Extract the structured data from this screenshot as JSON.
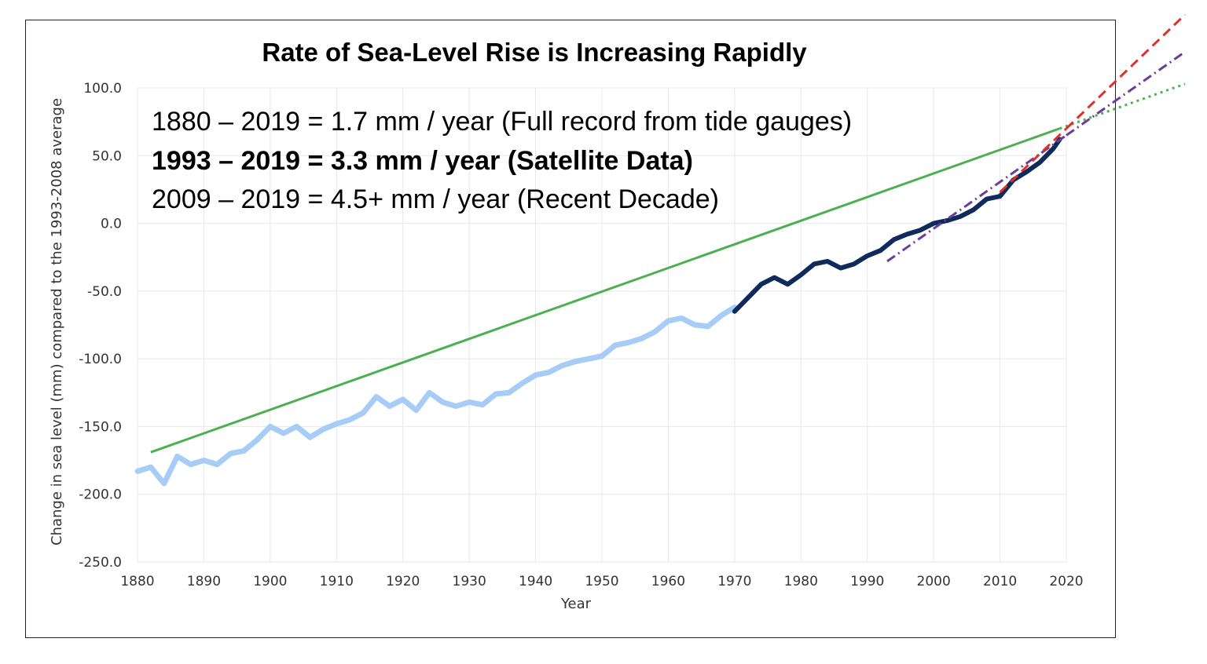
{
  "chart_data": {
    "type": "line",
    "title": "Rate of Sea-Level Rise is Increasing Rapidly",
    "xlabel": "Year",
    "ylabel": "Change in sea level (mm) compared to the 1993-2008 average",
    "xlim": [
      1880,
      2020
    ],
    "ylim": [
      -250,
      100
    ],
    "x_ticks": [
      "1880",
      "1890",
      "1900",
      "1910",
      "1920",
      "1930",
      "1940",
      "1950",
      "1960",
      "1970",
      "1980",
      "1990",
      "2000",
      "2010",
      "2020"
    ],
    "y_ticks": [
      "100.0",
      "50.0",
      "0.0",
      "-50.0",
      "-100.0",
      "-150.0",
      "-200.0",
      "-250.0"
    ],
    "grid": true,
    "annotations": [
      {
        "text": "1880 – 2019 = 1.7 mm / year (Full record from tide gauges)",
        "color": "#4caf50",
        "bold": false
      },
      {
        "text": "1993 – 2019 = 3.3 mm / year (Satellite Data)",
        "color": "#6a3d9a",
        "bold": true
      },
      {
        "text": "2009 – 2019 = 4.5+ mm / year (Recent Decade)",
        "color": "#e0302a",
        "bold": false
      }
    ],
    "series": [
      {
        "name": "",
        "color": "#a7cdf7",
        "x": [
          1880,
          1882,
          1884,
          1886,
          1888,
          1890,
          1892,
          1894,
          1896,
          1898,
          1900,
          1902,
          1904,
          1906,
          1908,
          1910,
          1912,
          1914,
          1916,
          1918,
          1920,
          1922,
          1924,
          1926,
          1928,
          1930,
          1932,
          1934,
          1936,
          1938,
          1940,
          1942,
          1944,
          1946,
          1948,
          1950,
          1952,
          1954,
          1956,
          1958,
          1960,
          1962,
          1964,
          1966,
          1968,
          1970
        ],
        "y": [
          -183,
          -180,
          -192,
          -172,
          -178,
          -175,
          -178,
          -170,
          -168,
          -160,
          -150,
          -155,
          -150,
          -158,
          -152,
          -148,
          -145,
          -140,
          -128,
          -135,
          -130,
          -138,
          -125,
          -132,
          -135,
          -132,
          -134,
          -126,
          -125,
          -118,
          -112,
          -110,
          -105,
          -102,
          -100,
          -98,
          -90,
          -88,
          -85,
          -80,
          -72,
          -70,
          -75,
          -76,
          -68,
          -62
        ]
      },
      {
        "name": "",
        "color": "#0e2b5c",
        "x": [
          1970,
          1972,
          1974,
          1976,
          1978,
          1980,
          1982,
          1984,
          1986,
          1988,
          1990,
          1992,
          1994,
          1996,
          1998,
          2000,
          2002,
          2004,
          2006,
          2008,
          2010,
          2012,
          2014,
          2016,
          2018,
          2019
        ],
        "y": [
          -65,
          -55,
          -45,
          -40,
          -45,
          -38,
          -30,
          -28,
          -33,
          -30,
          -24,
          -20,
          -12,
          -8,
          -5,
          0,
          2,
          5,
          10,
          18,
          20,
          32,
          38,
          45,
          55,
          62
        ]
      }
    ],
    "trends": [
      {
        "name": "1880 – 2019",
        "rate_mm_per_year": 1.7,
        "x": [
          1882,
          2019
        ],
        "y": [
          -169,
          70
        ],
        "color": "#4caf50",
        "style": "solid"
      },
      {
        "name": "1993 – 2019",
        "rate_mm_per_year": 3.3,
        "x": [
          1993,
          2020
        ],
        "y": [
          -28,
          65
        ],
        "color": "#6a3d9a",
        "style": "dash-dot"
      },
      {
        "name": "2009 – 2019",
        "rate_mm_per_year": 4.5,
        "x": [
          2010,
          2020
        ],
        "y": [
          23,
          70
        ],
        "color": "#e0302a",
        "style": "dashed"
      }
    ]
  }
}
